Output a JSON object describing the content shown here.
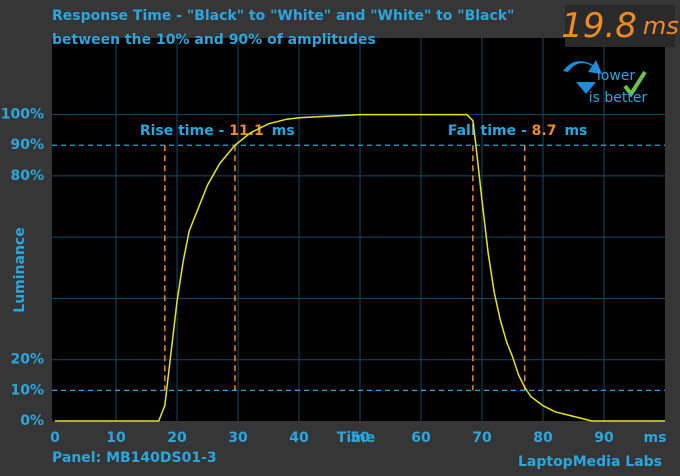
{
  "chart_data": {
    "type": "line",
    "title": "Response Time - \"Black\" to \"White\" and \"White\" to \"Black\"",
    "subtitle": "between the 10% and 90% of amplitudes",
    "x_label": "Time",
    "x_unit": "ms",
    "y_label": "Luminance",
    "x": [
      0,
      17,
      18,
      19,
      20,
      21,
      22,
      25,
      27,
      29.5,
      32,
      35,
      38,
      40,
      45,
      50,
      55,
      60,
      65,
      67.5,
      68.5,
      69,
      70,
      71,
      72,
      73,
      74,
      75,
      76,
      77,
      78,
      80,
      82,
      84,
      86,
      88,
      100
    ],
    "values": [
      0,
      0,
      5,
      22,
      39,
      52,
      62,
      77,
      84,
      90,
      94,
      97,
      98.5,
      99,
      99.5,
      100,
      100,
      100,
      100,
      100,
      98,
      90,
      72,
      55,
      42,
      33,
      26,
      21,
      15,
      11,
      8,
      5,
      3,
      2,
      1,
      0,
      0
    ],
    "color": "#e6e619",
    "xlim": [
      -0.5,
      100
    ],
    "xticks": [
      0,
      10,
      20,
      30,
      40,
      50,
      60,
      70,
      80,
      90
    ],
    "ylim": [
      0,
      125
    ],
    "yticks": [
      {
        "value": 0,
        "label": "0%"
      },
      {
        "value": 10,
        "label": "10%"
      },
      {
        "value": 20,
        "label": "20%"
      },
      {
        "value": 80,
        "label": "80%"
      },
      {
        "value": 90,
        "label": "90%"
      },
      {
        "value": 100,
        "label": "100%"
      }
    ],
    "ygrid": [
      20,
      40,
      60,
      80,
      100
    ],
    "dashed_levels": [
      10,
      90
    ],
    "annotations": [
      {
        "text": "Rise time - ",
        "value": "11.1",
        "unit": "ms",
        "lines": [
          18,
          29.5
        ]
      },
      {
        "text": "Fall time - ",
        "value": "8.7",
        "unit": "ms",
        "lines": [
          68.5,
          77
        ]
      }
    ],
    "score": {
      "value": "19.8",
      "unit": "ms"
    },
    "badge": [
      "lower",
      "is better"
    ],
    "panel": "Panel: MB140DS01-3",
    "credit": "LaptopMedia Labs"
  }
}
